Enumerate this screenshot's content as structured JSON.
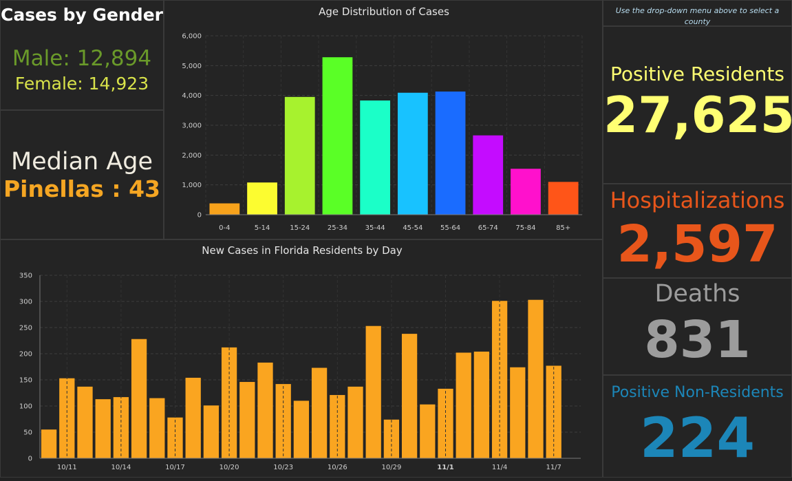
{
  "gender": {
    "title": "Cases by Gender",
    "male": "Male: 12,894",
    "female": "Female: 14,923"
  },
  "median": {
    "title": "Median Age",
    "value": "Pinellas : 43"
  },
  "hint": "Use the drop-down menu above to select a county",
  "kpis": {
    "positive": {
      "label": "Positive Residents",
      "value": "27,625",
      "color": "#ffff73"
    },
    "hospitalizations": {
      "label": "Hospitalizations",
      "value": "2,597",
      "color": "#e8561b"
    },
    "deaths": {
      "label": "Deaths",
      "value": "831",
      "color": "#9c9c9c"
    },
    "nonresidents": {
      "label": "Positive Non-Residents",
      "value": "224",
      "color": "#1c86b8"
    }
  },
  "chart_data": [
    {
      "type": "bar",
      "title": "Age Distribution of Cases",
      "categories": [
        "0-4",
        "5-14",
        "15-24",
        "25-34",
        "35-44",
        "45-54",
        "55-64",
        "65-74",
        "75-84",
        "85+"
      ],
      "values": [
        380,
        1080,
        3950,
        5280,
        3830,
        4090,
        4130,
        2660,
        1540,
        1100
      ],
      "colors": [
        "#f7a21b",
        "#fcfc30",
        "#a7f22e",
        "#5aff26",
        "#1bffc8",
        "#18c2ff",
        "#1a6cff",
        "#c40cff",
        "#ff11cc",
        "#ff5518"
      ],
      "yticks": [
        0,
        1000,
        2000,
        3000,
        4000,
        5000,
        6000
      ],
      "ytick_labels": [
        "0",
        "1,000",
        "2,000",
        "3,000",
        "4,000",
        "5,000",
        "6,000"
      ],
      "ylim": [
        0,
        6000
      ],
      "grid": true
    },
    {
      "type": "bar",
      "title": "New Cases in Florida Residents by Day",
      "x": [
        "10/10",
        "10/11",
        "10/12",
        "10/13",
        "10/14",
        "10/15",
        "10/16",
        "10/17",
        "10/18",
        "10/19",
        "10/20",
        "10/21",
        "10/22",
        "10/23",
        "10/24",
        "10/25",
        "10/26",
        "10/27",
        "10/28",
        "10/29",
        "10/30",
        "10/31",
        "11/1",
        "11/2",
        "11/3",
        "11/4",
        "11/5",
        "11/6",
        "11/7",
        "11/8"
      ],
      "values": [
        55,
        153,
        137,
        113,
        117,
        228,
        115,
        78,
        154,
        101,
        212,
        146,
        183,
        142,
        110,
        173,
        121,
        137,
        253,
        74,
        238,
        103,
        133,
        202,
        204,
        301,
        174,
        303,
        177,
        0
      ],
      "color": "#faa520",
      "xtick_labels": [
        "10/11",
        "10/14",
        "10/17",
        "10/20",
        "10/23",
        "10/26",
        "10/29",
        "11/1",
        "11/4",
        "11/7"
      ],
      "yticks": [
        0,
        50,
        100,
        150,
        200,
        250,
        300,
        350
      ],
      "ylim": [
        0,
        350
      ],
      "grid": true
    }
  ]
}
